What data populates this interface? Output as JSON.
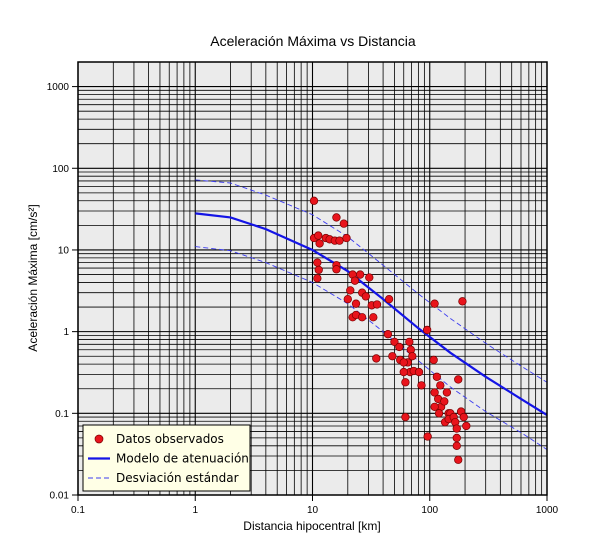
{
  "chart_data": {
    "type": "scatter",
    "title": "Aceleración Máxima vs Distancia",
    "xlabel": "Distancia hipocentral [km]",
    "ylabel": "Aceleración Máxima [cm/s²]",
    "xscale": "log",
    "yscale": "log",
    "xlim": [
      0.1,
      1000
    ],
    "ylim": [
      0.01,
      2000
    ],
    "xticks": [
      "0.1",
      "1",
      "10",
      "100",
      "1000"
    ],
    "yticks": [
      "0.01",
      "0.1",
      "1",
      "10",
      "100",
      "1000"
    ],
    "grid": true,
    "legend_position": "bottom-left",
    "background_color": "#ebebeb",
    "series": [
      {
        "name": "Datos observados",
        "kind": "points",
        "color": "#e8141c",
        "points": [
          [
            10.3,
            40
          ],
          [
            10.3,
            14
          ],
          [
            11.2,
            15
          ],
          [
            11.5,
            12
          ],
          [
            13,
            14
          ],
          [
            14,
            13.5
          ],
          [
            15.5,
            13
          ],
          [
            16,
            25
          ],
          [
            17,
            13
          ],
          [
            18.5,
            21
          ],
          [
            19.5,
            14
          ],
          [
            11,
            7
          ],
          [
            11.3,
            5.7
          ],
          [
            11,
            4.5
          ],
          [
            16,
            6.5
          ],
          [
            16,
            5.8
          ],
          [
            22,
            5
          ],
          [
            23,
            4.2
          ],
          [
            25.5,
            5
          ],
          [
            21,
            3.2
          ],
          [
            26.5,
            3
          ],
          [
            30.5,
            4.6
          ],
          [
            20,
            2.5
          ],
          [
            23.5,
            2.2
          ],
          [
            28.5,
            2.7
          ],
          [
            32,
            2.1
          ],
          [
            35.5,
            2.15
          ],
          [
            45,
            2.5
          ],
          [
            22,
            1.5
          ],
          [
            23.5,
            1.6
          ],
          [
            26.5,
            1.5
          ],
          [
            33,
            1.5
          ],
          [
            44,
            0.93
          ],
          [
            50,
            0.75
          ],
          [
            55,
            0.65
          ],
          [
            67,
            0.75
          ],
          [
            69,
            0.6
          ],
          [
            71,
            0.5
          ],
          [
            65,
            0.42
          ],
          [
            48,
            0.5
          ],
          [
            56,
            0.45
          ],
          [
            35,
            0.47
          ],
          [
            60,
            0.42
          ],
          [
            68,
            0.32
          ],
          [
            73,
            0.33
          ],
          [
            60,
            0.32
          ],
          [
            81,
            0.32
          ],
          [
            62,
            0.24
          ],
          [
            85,
            0.22
          ],
          [
            110,
            2.2
          ],
          [
            190,
            2.35
          ],
          [
            95,
            1.05
          ],
          [
            108,
            0.45
          ],
          [
            115,
            0.28
          ],
          [
            110,
            0.18
          ],
          [
            123,
            0.22
          ],
          [
            118,
            0.15
          ],
          [
            125,
            0.12
          ],
          [
            110,
            0.12
          ],
          [
            120,
            0.1
          ],
          [
            133,
            0.14
          ],
          [
            140,
            0.18
          ],
          [
            145,
            0.1
          ],
          [
            150,
            0.1
          ],
          [
            135,
            0.078
          ],
          [
            145,
            0.085
          ],
          [
            160,
            0.09
          ],
          [
            165,
            0.078
          ],
          [
            175,
            0.26
          ],
          [
            185,
            0.105
          ],
          [
            195,
            0.09
          ],
          [
            205,
            0.07
          ],
          [
            170,
            0.065
          ],
          [
            170,
            0.05
          ],
          [
            170,
            0.04
          ],
          [
            62,
            0.09
          ],
          [
            96,
            0.052
          ],
          [
            175,
            0.027
          ]
        ]
      },
      {
        "name": "Modelo de atenuación",
        "kind": "line",
        "color": "#1414e6",
        "points": [
          [
            1,
            28
          ],
          [
            2,
            25
          ],
          [
            4,
            18
          ],
          [
            10,
            10
          ],
          [
            20,
            5.5
          ],
          [
            40,
            2.5
          ],
          [
            80,
            1.1
          ],
          [
            150,
            0.55
          ],
          [
            300,
            0.28
          ],
          [
            600,
            0.15
          ],
          [
            1000,
            0.095
          ]
        ]
      },
      {
        "name": "Desviación estándar",
        "kind": "dashed-line",
        "color": "#3c3cf0",
        "upper": [
          [
            1,
            72
          ],
          [
            2,
            66
          ],
          [
            4,
            47
          ],
          [
            10,
            27
          ],
          [
            20,
            14.5
          ],
          [
            40,
            6.5
          ],
          [
            80,
            2.9
          ],
          [
            150,
            1.45
          ],
          [
            300,
            0.72
          ],
          [
            600,
            0.38
          ],
          [
            1000,
            0.24
          ]
        ],
        "lower": [
          [
            1,
            11
          ],
          [
            2,
            9.8
          ],
          [
            4,
            7
          ],
          [
            10,
            4
          ],
          [
            20,
            2.2
          ],
          [
            40,
            1.0
          ],
          [
            80,
            0.44
          ],
          [
            150,
            0.21
          ],
          [
            300,
            0.105
          ],
          [
            600,
            0.058
          ],
          [
            1000,
            0.036
          ]
        ]
      }
    ]
  }
}
